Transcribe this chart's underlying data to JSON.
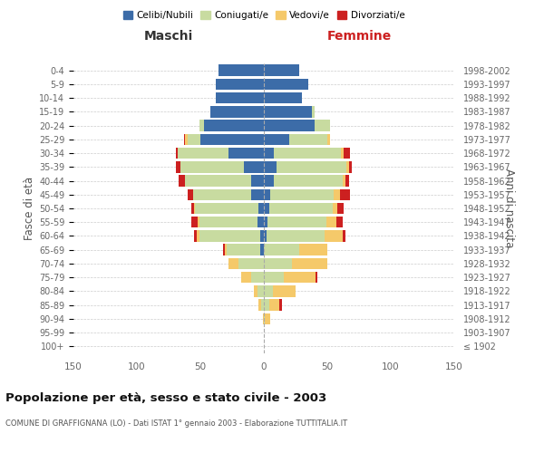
{
  "age_groups": [
    "100+",
    "95-99",
    "90-94",
    "85-89",
    "80-84",
    "75-79",
    "70-74",
    "65-69",
    "60-64",
    "55-59",
    "50-54",
    "45-49",
    "40-44",
    "35-39",
    "30-34",
    "25-29",
    "20-24",
    "15-19",
    "10-14",
    "5-9",
    "0-4"
  ],
  "birth_years": [
    "≤ 1902",
    "1903-1907",
    "1908-1912",
    "1913-1917",
    "1918-1922",
    "1923-1927",
    "1928-1932",
    "1933-1937",
    "1938-1942",
    "1943-1947",
    "1948-1952",
    "1953-1957",
    "1958-1962",
    "1963-1967",
    "1968-1972",
    "1973-1977",
    "1978-1982",
    "1983-1987",
    "1988-1992",
    "1993-1997",
    "1998-2002"
  ],
  "male_celibi": [
    0,
    0,
    0,
    0,
    0,
    0,
    0,
    3,
    3,
    5,
    4,
    10,
    10,
    16,
    28,
    50,
    47,
    42,
    38,
    38,
    36
  ],
  "male_coniugati": [
    0,
    0,
    0,
    2,
    5,
    10,
    20,
    26,
    48,
    46,
    50,
    46,
    52,
    50,
    40,
    10,
    4,
    0,
    0,
    0,
    0
  ],
  "male_vedovi": [
    0,
    0,
    1,
    2,
    3,
    8,
    8,
    2,
    2,
    1,
    1,
    0,
    0,
    0,
    0,
    2,
    0,
    0,
    0,
    0,
    0
  ],
  "male_divorziati": [
    0,
    0,
    0,
    0,
    0,
    0,
    0,
    1,
    2,
    5,
    2,
    4,
    5,
    3,
    1,
    1,
    0,
    0,
    0,
    0,
    0
  ],
  "female_nubili": [
    0,
    0,
    0,
    0,
    0,
    0,
    0,
    0,
    2,
    3,
    4,
    5,
    8,
    10,
    8,
    20,
    40,
    38,
    30,
    35,
    28
  ],
  "female_coniugate": [
    0,
    0,
    1,
    4,
    7,
    16,
    22,
    28,
    46,
    46,
    50,
    50,
    54,
    55,
    53,
    30,
    12,
    2,
    0,
    0,
    0
  ],
  "female_vedove": [
    0,
    0,
    4,
    8,
    18,
    25,
    28,
    22,
    14,
    8,
    4,
    5,
    2,
    2,
    2,
    2,
    0,
    0,
    0,
    0,
    0
  ],
  "female_divorziate": [
    0,
    0,
    0,
    2,
    0,
    1,
    0,
    0,
    2,
    5,
    5,
    8,
    3,
    2,
    5,
    0,
    0,
    0,
    0,
    0,
    0
  ],
  "color_celibi": "#3c6ca8",
  "color_coniugati": "#c8dba0",
  "color_vedovi": "#f5c96a",
  "color_divorziati": "#cc2020",
  "xlim": 150,
  "title": "Popolazione per età, sesso e stato civile - 2003",
  "subtitle": "COMUNE DI GRAFFIGNANA (LO) - Dati ISTAT 1° gennaio 2003 - Elaborazione TUTTITALIA.IT",
  "label_maschi": "Maschi",
  "label_femmine": "Femmine",
  "ylabel_left": "Fasce di età",
  "ylabel_right": "Anni di nascita",
  "legend": [
    "Celibi/Nubili",
    "Coniugati/e",
    "Vedovi/e",
    "Divorziati/e"
  ],
  "bg_color": "#ffffff",
  "grid_color": "#cccccc"
}
